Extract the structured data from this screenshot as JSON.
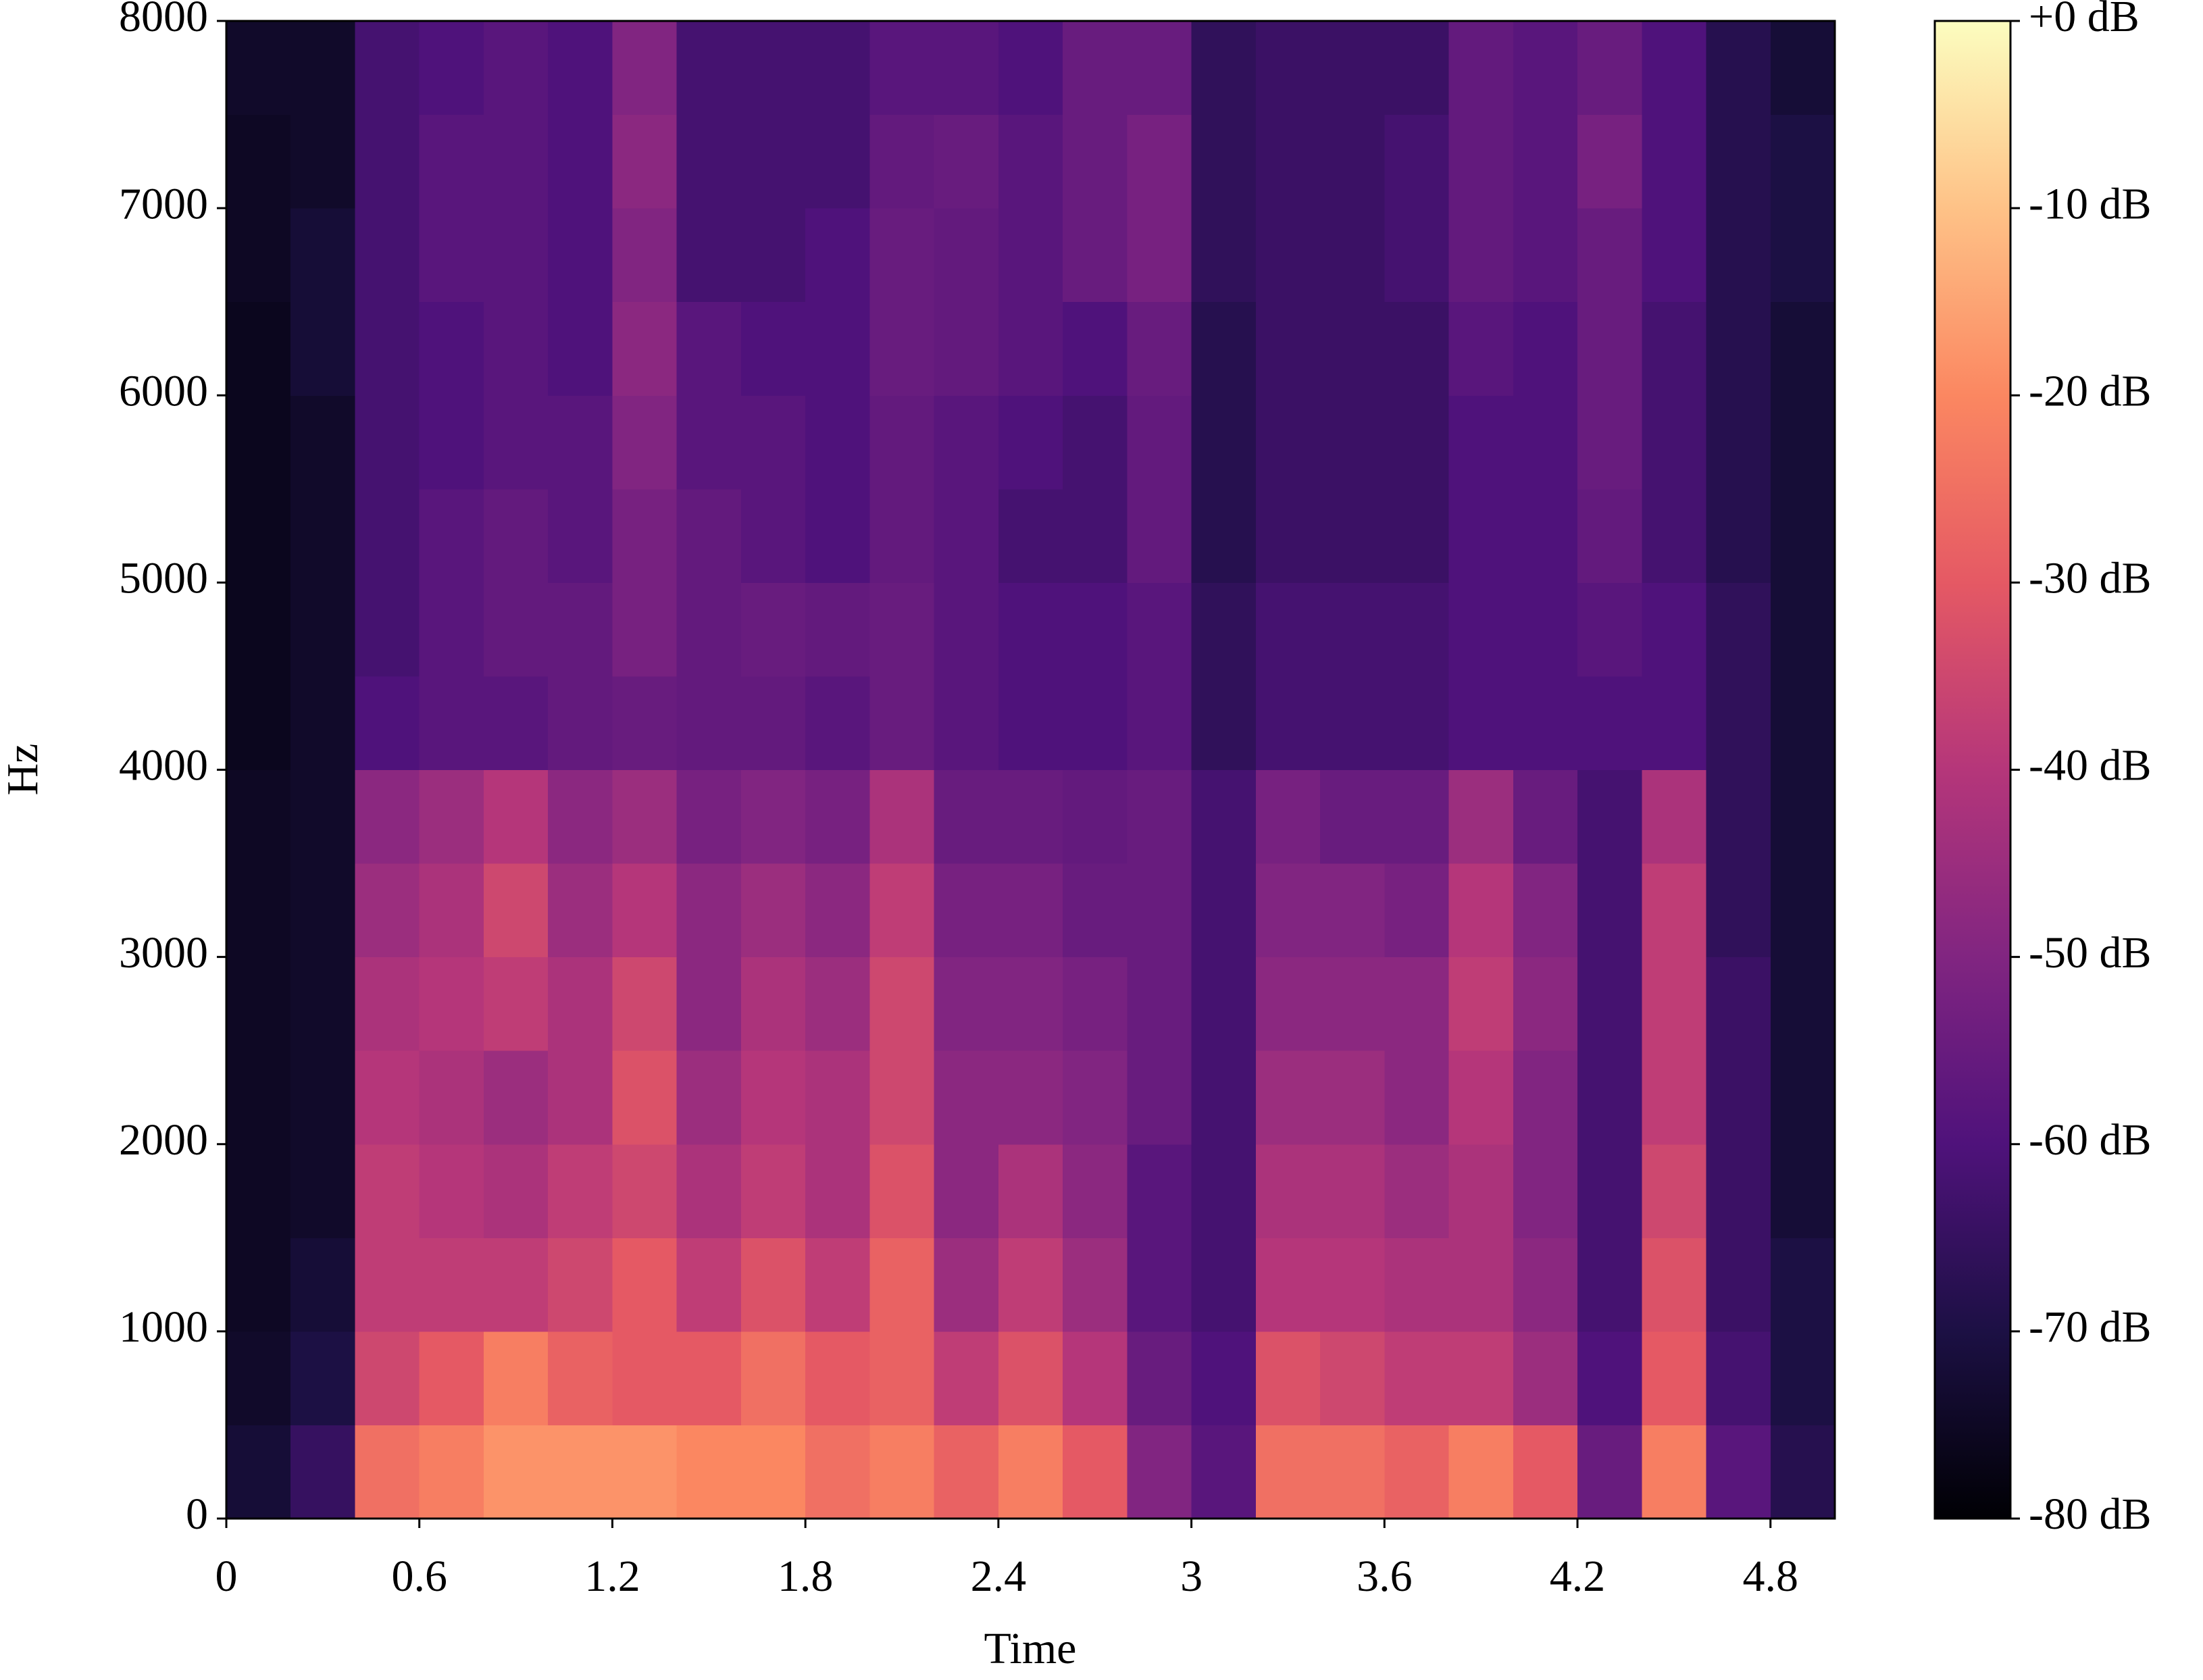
{
  "chart_data": {
    "type": "spectrogram",
    "xlabel": "Time",
    "ylabel": "Hz",
    "colormap": "magma",
    "xlim": [
      0,
      5.0
    ],
    "ylim": [
      0,
      8000
    ],
    "clim": [
      -80,
      0
    ],
    "xticks": [
      0,
      0.6,
      1.2,
      1.8,
      2.4,
      3,
      3.6,
      4.2,
      4.8
    ],
    "yticks": [
      0,
      1000,
      2000,
      3000,
      4000,
      5000,
      6000,
      7000,
      8000
    ],
    "cticks": [
      {
        "value": 0,
        "label": "+0 dB"
      },
      {
        "value": -10,
        "label": "-10 dB"
      },
      {
        "value": -20,
        "label": "-20 dB"
      },
      {
        "value": -30,
        "label": "-30 dB"
      },
      {
        "value": -40,
        "label": "-40 dB"
      },
      {
        "value": -50,
        "label": "-50 dB"
      },
      {
        "value": -60,
        "label": "-60 dB"
      },
      {
        "value": -70,
        "label": "-70 dB"
      },
      {
        "value": -80,
        "label": "-80 dB"
      }
    ],
    "xbins": [
      0,
      0.2,
      0.4,
      0.6,
      0.8,
      1.0,
      1.2,
      1.4,
      1.6,
      1.8,
      2.0,
      2.2,
      2.4,
      2.6,
      2.8,
      3.0,
      3.2,
      3.4,
      3.6,
      3.8,
      4.0,
      4.2,
      4.4,
      4.6,
      4.8,
      5.0
    ],
    "ybins": [
      0,
      500,
      1000,
      1500,
      2000,
      2500,
      3000,
      3500,
      4000,
      4500,
      5000,
      5500,
      6000,
      6500,
      7000,
      7500,
      8000
    ],
    "values": [
      [
        -72,
        -74,
        -75,
        -75,
        -75,
        -75,
        -75,
        -75,
        -76,
        -76,
        -76,
        -76,
        -76,
        -75,
        -75,
        -74
      ],
      [
        -65,
        -70,
        -72,
        -74,
        -74,
        -74,
        -74,
        -74,
        -74,
        -74,
        -74,
        -74,
        -72,
        -72,
        -74,
        -74
      ],
      [
        -25,
        -35,
        -38,
        -38,
        -40,
        -42,
        -45,
        -48,
        -60,
        -62,
        -62,
        -62,
        -62,
        -62,
        -62,
        -62
      ],
      [
        -22,
        -30,
        -38,
        -40,
        -42,
        -40,
        -42,
        -45,
        -58,
        -58,
        -58,
        -60,
        -60,
        -58,
        -58,
        -60
      ],
      [
        -18,
        -22,
        -38,
        -42,
        -45,
        -38,
        -35,
        -40,
        -58,
        -56,
        -56,
        -58,
        -58,
        -58,
        -58,
        -58
      ],
      [
        -18,
        -28,
        -35,
        -38,
        -42,
        -42,
        -45,
        -48,
        -56,
        -56,
        -58,
        -58,
        -60,
        -60,
        -60,
        -60
      ],
      [
        -18,
        -30,
        -30,
        -35,
        -32,
        -35,
        -40,
        -45,
        -55,
        -52,
        -52,
        -50,
        -48,
        -50,
        -48,
        -50
      ],
      [
        -20,
        -30,
        -38,
        -42,
        -45,
        -48,
        -48,
        -52,
        -56,
        -56,
        -56,
        -58,
        -58,
        -62,
        -62,
        -62
      ],
      [
        -20,
        -25,
        -32,
        -38,
        -40,
        -42,
        -45,
        -50,
        -56,
        -55,
        -58,
        -58,
        -60,
        -62,
        -62,
        -62
      ],
      [
        -25,
        -30,
        -38,
        -42,
        -42,
        -45,
        -48,
        -52,
        -58,
        -56,
        -60,
        -60,
        -60,
        -60,
        -62,
        -62
      ],
      [
        -22,
        -28,
        -28,
        -32,
        -35,
        -35,
        -38,
        -42,
        -55,
        -55,
        -56,
        -56,
        -55,
        -55,
        -56,
        -58
      ],
      [
        -28,
        -38,
        -45,
        -48,
        -48,
        -50,
        -52,
        -55,
        -58,
        -58,
        -58,
        -58,
        -56,
        -56,
        -55,
        -58
      ],
      [
        -22,
        -32,
        -38,
        -42,
        -48,
        -50,
        -52,
        -55,
        -60,
        -60,
        -62,
        -60,
        -58,
        -58,
        -58,
        -60
      ],
      [
        -30,
        -40,
        -45,
        -48,
        -50,
        -52,
        -55,
        -56,
        -60,
        -60,
        -62,
        -62,
        -60,
        -55,
        -55,
        -55
      ],
      [
        -50,
        -55,
        -58,
        -58,
        -55,
        -55,
        -55,
        -55,
        -58,
        -58,
        -56,
        -56,
        -55,
        -52,
        -52,
        -55
      ],
      [
        -58,
        -60,
        -62,
        -62,
        -62,
        -62,
        -62,
        -62,
        -66,
        -66,
        -68,
        -68,
        -68,
        -66,
        -66,
        -66
      ],
      [
        -25,
        -32,
        -40,
        -42,
        -45,
        -48,
        -50,
        -52,
        -62,
        -62,
        -64,
        -64,
        -64,
        -64,
        -64,
        -64
      ],
      [
        -25,
        -35,
        -40,
        -42,
        -45,
        -48,
        -50,
        -55,
        -62,
        -62,
        -64,
        -64,
        -64,
        -64,
        -64,
        -64
      ],
      [
        -28,
        -38,
        -42,
        -45,
        -48,
        -48,
        -52,
        -55,
        -62,
        -62,
        -64,
        -64,
        -64,
        -62,
        -62,
        -64
      ],
      [
        -22,
        -38,
        -42,
        -42,
        -40,
        -38,
        -40,
        -45,
        -60,
        -60,
        -60,
        -60,
        -58,
        -56,
        -56,
        -56
      ],
      [
        -30,
        -45,
        -48,
        -50,
        -50,
        -48,
        -50,
        -55,
        -60,
        -60,
        -60,
        -60,
        -60,
        -58,
        -58,
        -58
      ],
      [
        -55,
        -60,
        -62,
        -62,
        -62,
        -62,
        -62,
        -62,
        -60,
        -58,
        -56,
        -55,
        -55,
        -55,
        -52,
        -55
      ],
      [
        -22,
        -30,
        -32,
        -35,
        -38,
        -38,
        -38,
        -42,
        -60,
        -60,
        -62,
        -62,
        -62,
        -60,
        -60,
        -60
      ],
      [
        -58,
        -62,
        -64,
        -64,
        -64,
        -64,
        -66,
        -66,
        -66,
        -66,
        -68,
        -68,
        -68,
        -68,
        -68,
        -68
      ],
      [
        -68,
        -70,
        -70,
        -72,
        -72,
        -72,
        -72,
        -72,
        -72,
        -72,
        -72,
        -72,
        -72,
        -70,
        -70,
        -72
      ]
    ]
  }
}
